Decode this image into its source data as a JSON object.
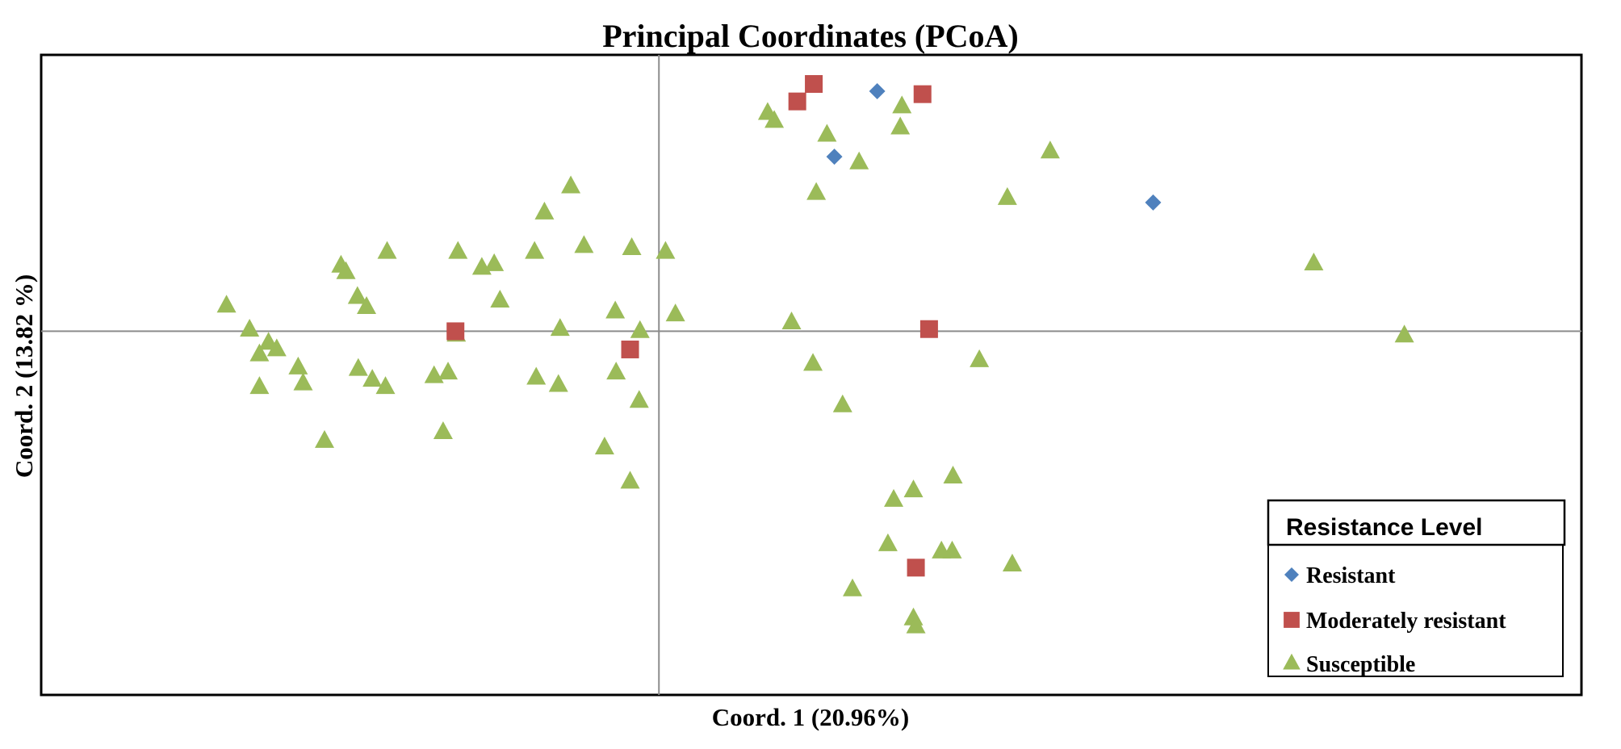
{
  "chart_data": {
    "type": "scatter",
    "title": "Principal Coordinates (PCoA)",
    "xlabel": "Coord. 1 (20.96%)",
    "ylabel": "Coord. 2 (13.82 %)",
    "xlim": [
      -0.75,
      1.12
    ],
    "ylim": [
      -0.5,
      0.38
    ],
    "grid": false,
    "reference_lines": {
      "x": 0,
      "y": 0
    },
    "legend": {
      "title": "Resistance Level",
      "position": "bottom-right"
    },
    "colors": {
      "Resistant": "#4f81bd",
      "Moderately resistant": "#c0504d",
      "Susceptible": "#9bbb59"
    },
    "series": [
      {
        "name": "Resistant",
        "marker": "diamond",
        "points": [
          [
            0.265,
            0.33
          ],
          [
            0.213,
            0.24
          ],
          [
            0.6,
            0.177
          ]
        ]
      },
      {
        "name": "Moderately resistant",
        "marker": "square",
        "points": [
          [
            0.188,
            0.34
          ],
          [
            0.168,
            0.316
          ],
          [
            0.32,
            0.326
          ],
          [
            0.328,
            0.003
          ],
          [
            -0.247,
            0.0
          ],
          [
            -0.035,
            -0.025
          ],
          [
            0.312,
            -0.325
          ]
        ]
      },
      {
        "name": "Susceptible",
        "marker": "triangle",
        "points": [
          [
            0.132,
            0.3
          ],
          [
            0.14,
            0.289
          ],
          [
            0.204,
            0.27
          ],
          [
            0.295,
            0.309
          ],
          [
            0.293,
            0.28
          ],
          [
            0.243,
            0.232
          ],
          [
            0.191,
            0.19
          ],
          [
            0.475,
            0.247
          ],
          [
            0.423,
            0.183
          ],
          [
            0.795,
            0.093
          ],
          [
            0.905,
            -0.006
          ],
          [
            -0.107,
            0.199
          ],
          [
            -0.139,
            0.163
          ],
          [
            -0.091,
            0.117
          ],
          [
            -0.033,
            0.114
          ],
          [
            0.008,
            0.109
          ],
          [
            -0.151,
            0.109
          ],
          [
            -0.2,
            0.092
          ],
          [
            -0.215,
            0.087
          ],
          [
            -0.244,
            0.109
          ],
          [
            -0.33,
            0.109
          ],
          [
            -0.386,
            0.09
          ],
          [
            -0.38,
            0.081
          ],
          [
            -0.366,
            0.047
          ],
          [
            -0.355,
            0.033
          ],
          [
            -0.193,
            0.042
          ],
          [
            -0.053,
            0.027
          ],
          [
            0.02,
            0.023
          ],
          [
            -0.525,
            0.035
          ],
          [
            -0.497,
            0.002
          ],
          [
            -0.474,
            -0.016
          ],
          [
            -0.485,
            -0.032
          ],
          [
            -0.464,
            -0.025
          ],
          [
            -0.246,
            -0.005
          ],
          [
            -0.12,
            0.003
          ],
          [
            -0.023,
            0.0
          ],
          [
            0.161,
            0.012
          ],
          [
            -0.438,
            -0.05
          ],
          [
            -0.365,
            -0.052
          ],
          [
            -0.348,
            -0.067
          ],
          [
            -0.332,
            -0.077
          ],
          [
            -0.256,
            -0.057
          ],
          [
            -0.273,
            -0.062
          ],
          [
            -0.149,
            -0.064
          ],
          [
            -0.122,
            -0.074
          ],
          [
            -0.052,
            -0.057
          ],
          [
            0.187,
            -0.045
          ],
          [
            0.389,
            -0.04
          ],
          [
            -0.485,
            -0.077
          ],
          [
            -0.432,
            -0.072
          ],
          [
            -0.024,
            -0.096
          ],
          [
            0.223,
            -0.102
          ],
          [
            -0.406,
            -0.151
          ],
          [
            -0.262,
            -0.139
          ],
          [
            -0.066,
            -0.16
          ],
          [
            -0.035,
            -0.207
          ],
          [
            0.357,
            -0.2
          ],
          [
            0.309,
            -0.219
          ],
          [
            0.285,
            -0.232
          ],
          [
            0.278,
            -0.293
          ],
          [
            0.343,
            -0.303
          ],
          [
            0.356,
            -0.303
          ],
          [
            0.429,
            -0.321
          ],
          [
            0.235,
            -0.355
          ],
          [
            0.309,
            -0.395
          ],
          [
            0.312,
            -0.406
          ]
        ]
      }
    ]
  }
}
